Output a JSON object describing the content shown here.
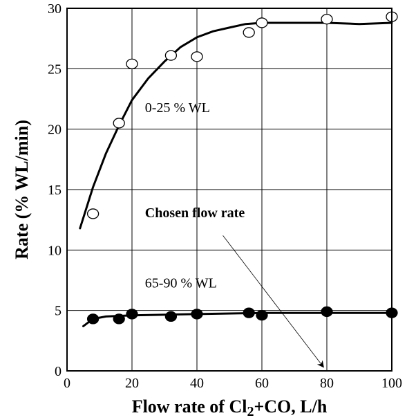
{
  "chart_data": {
    "type": "scatter",
    "xlabel": {
      "main": "Flow rate of Cl",
      "sub": "2",
      "rest": "+CO, L/h"
    },
    "ylabel": "Rate (% WL/min)",
    "xlim": [
      0,
      100
    ],
    "ylim": [
      0,
      30
    ],
    "xticks": [
      0,
      20,
      40,
      60,
      80,
      100
    ],
    "yticks": [
      0,
      5,
      10,
      15,
      20,
      25,
      30
    ],
    "grid": true,
    "series": [
      {
        "name": "0-25 % WL",
        "marker": "open-circle",
        "points": [
          {
            "x": 8,
            "y": 13.0
          },
          {
            "x": 16,
            "y": 20.5
          },
          {
            "x": 20,
            "y": 25.4
          },
          {
            "x": 32,
            "y": 26.1
          },
          {
            "x": 40,
            "y": 26.0
          },
          {
            "x": 56,
            "y": 28.0
          },
          {
            "x": 60,
            "y": 28.8
          },
          {
            "x": 80,
            "y": 29.1
          },
          {
            "x": 100,
            "y": 29.3
          }
        ],
        "fit": [
          [
            4,
            11.8
          ],
          [
            8,
            15.2
          ],
          [
            12,
            18.0
          ],
          [
            16,
            20.3
          ],
          [
            20,
            22.4
          ],
          [
            25,
            24.2
          ],
          [
            30,
            25.6
          ],
          [
            35,
            26.8
          ],
          [
            40,
            27.6
          ],
          [
            45,
            28.1
          ],
          [
            50,
            28.4
          ],
          [
            55,
            28.7
          ],
          [
            60,
            28.8
          ],
          [
            65,
            28.8
          ],
          [
            70,
            28.8
          ],
          [
            80,
            28.8
          ],
          [
            90,
            28.7
          ],
          [
            100,
            28.8
          ]
        ]
      },
      {
        "name": "65-90 % WL",
        "marker": "filled-circle",
        "points": [
          {
            "x": 8,
            "y": 4.3
          },
          {
            "x": 16,
            "y": 4.3
          },
          {
            "x": 20,
            "y": 4.7
          },
          {
            "x": 32,
            "y": 4.5
          },
          {
            "x": 40,
            "y": 4.7
          },
          {
            "x": 56,
            "y": 4.8
          },
          {
            "x": 60,
            "y": 4.6
          },
          {
            "x": 80,
            "y": 4.9
          },
          {
            "x": 100,
            "y": 4.8
          }
        ],
        "fit": [
          [
            5,
            3.7
          ],
          [
            8,
            4.3
          ],
          [
            12,
            4.5
          ],
          [
            20,
            4.6
          ],
          [
            40,
            4.7
          ],
          [
            60,
            4.8
          ],
          [
            80,
            4.8
          ],
          [
            100,
            4.8
          ]
        ]
      }
    ],
    "annotations": [
      {
        "text": "0-25 % WL",
        "x": 24,
        "y": 21.4,
        "weight": "normal"
      },
      {
        "text": "65-90 % WL",
        "x": 24,
        "y": 6.9,
        "weight": "normal"
      },
      {
        "text": "Chosen flow rate",
        "x": 24,
        "y": 12.7,
        "weight": "bold"
      }
    ],
    "arrow": {
      "from": [
        48,
        11.2
      ],
      "to": [
        79,
        0.3
      ],
      "label": "Chosen flow rate"
    }
  }
}
